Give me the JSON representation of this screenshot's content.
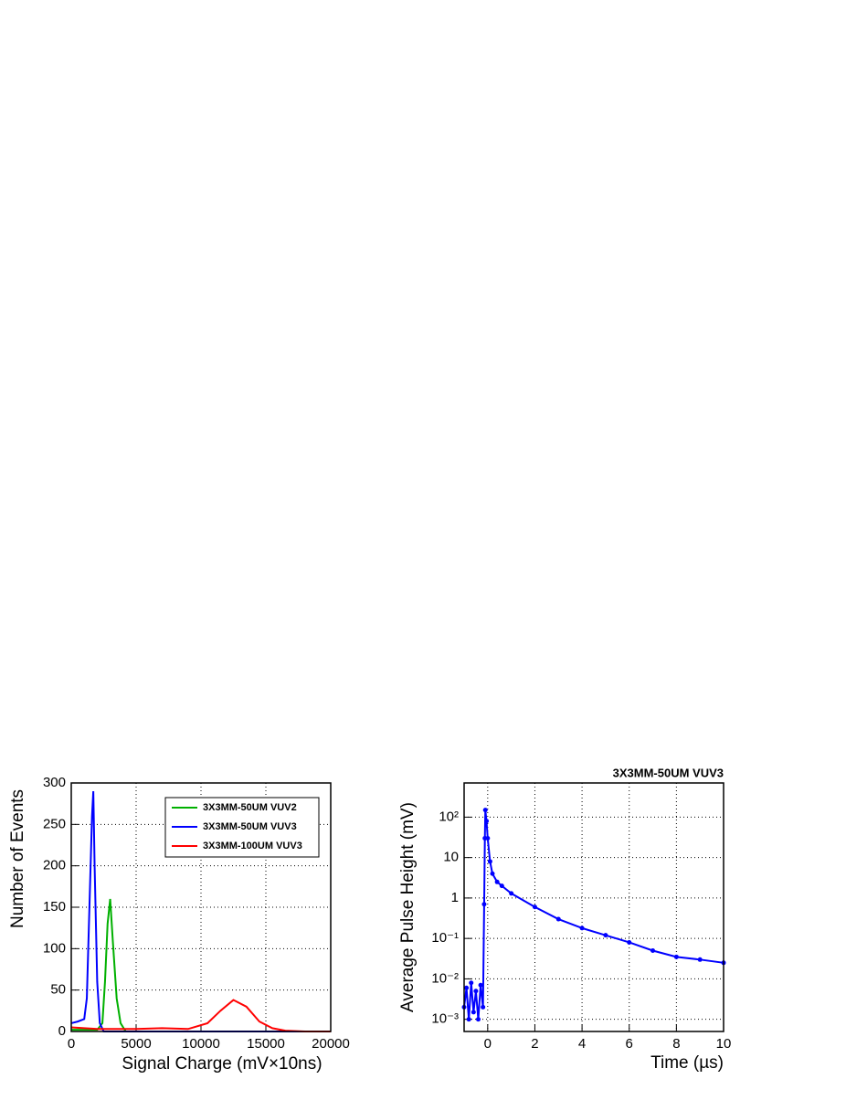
{
  "chart_data": [
    {
      "type": "line",
      "x_label": "Signal Charge (mV×10ns)",
      "y_label": "Number of Events",
      "xlim": [
        0,
        20000
      ],
      "xticks": [
        0,
        5000,
        10000,
        15000,
        20000
      ],
      "ylim": [
        0,
        300
      ],
      "yticks": [
        0,
        50,
        100,
        150,
        200,
        250,
        300
      ],
      "grid": true,
      "legend": "upper right",
      "series": [
        {
          "name": "3X3MM-50UM VUV2",
          "color": "#00b000",
          "x": [
            0,
            2000,
            2400,
            2600,
            2800,
            3000,
            3200,
            3500,
            3800,
            4200,
            20000
          ],
          "values": [
            2,
            2,
            10,
            60,
            130,
            160,
            110,
            40,
            10,
            0,
            0
          ]
        },
        {
          "name": "3X3MM-50UM VUV3",
          "color": "#0000ff",
          "x": [
            0,
            500,
            1000,
            1200,
            1400,
            1600,
            1700,
            1800,
            2000,
            2200,
            2500,
            20000
          ],
          "values": [
            10,
            12,
            15,
            40,
            150,
            260,
            290,
            200,
            60,
            10,
            0,
            0
          ]
        },
        {
          "name": "3X3MM-100UM VUV3",
          "color": "#ff0000",
          "x": [
            0,
            2000,
            5000,
            7000,
            9000,
            10500,
            11500,
            12500,
            13500,
            14500,
            15500,
            16500,
            18000,
            20000
          ],
          "values": [
            5,
            3,
            3,
            4,
            3,
            10,
            25,
            38,
            30,
            12,
            4,
            1,
            0,
            0
          ]
        }
      ]
    },
    {
      "type": "line",
      "title": "3X3MM-50UM VUV3",
      "x_label": "Time (µs)",
      "y_label": "Average Pulse Height (mV)",
      "xlim": [
        -1,
        10
      ],
      "xticks": [
        0,
        2,
        4,
        6,
        8,
        10
      ],
      "ylim": [
        0.0005,
        700
      ],
      "log_y": true,
      "yticks": [
        {
          "value": 0.001,
          "label": "10⁻³"
        },
        {
          "value": 0.01,
          "label": "10⁻²"
        },
        {
          "value": 0.1,
          "label": "10⁻¹"
        },
        1,
        10,
        {
          "value": 100,
          "label": "10²"
        }
      ],
      "grid": true,
      "series": [
        {
          "color": "#0000ff",
          "x": [
            -1,
            -0.9,
            -0.8,
            -0.7,
            -0.6,
            -0.5,
            -0.4,
            -0.3,
            -0.2,
            -0.15,
            -0.12,
            -0.1,
            -0.05,
            0,
            0.1,
            0.2,
            0.4,
            0.6,
            1,
            2,
            3,
            4,
            5,
            6,
            7,
            8,
            9,
            10
          ],
          "values": [
            0.002,
            0.006,
            0.001,
            0.008,
            0.0015,
            0.005,
            0.001,
            0.007,
            0.002,
            0.7,
            30,
            150,
            80,
            30,
            8,
            4,
            2.5,
            2,
            1.3,
            0.6,
            0.3,
            0.18,
            0.12,
            0.08,
            0.05,
            0.035,
            0.03,
            0.025
          ]
        }
      ]
    }
  ]
}
